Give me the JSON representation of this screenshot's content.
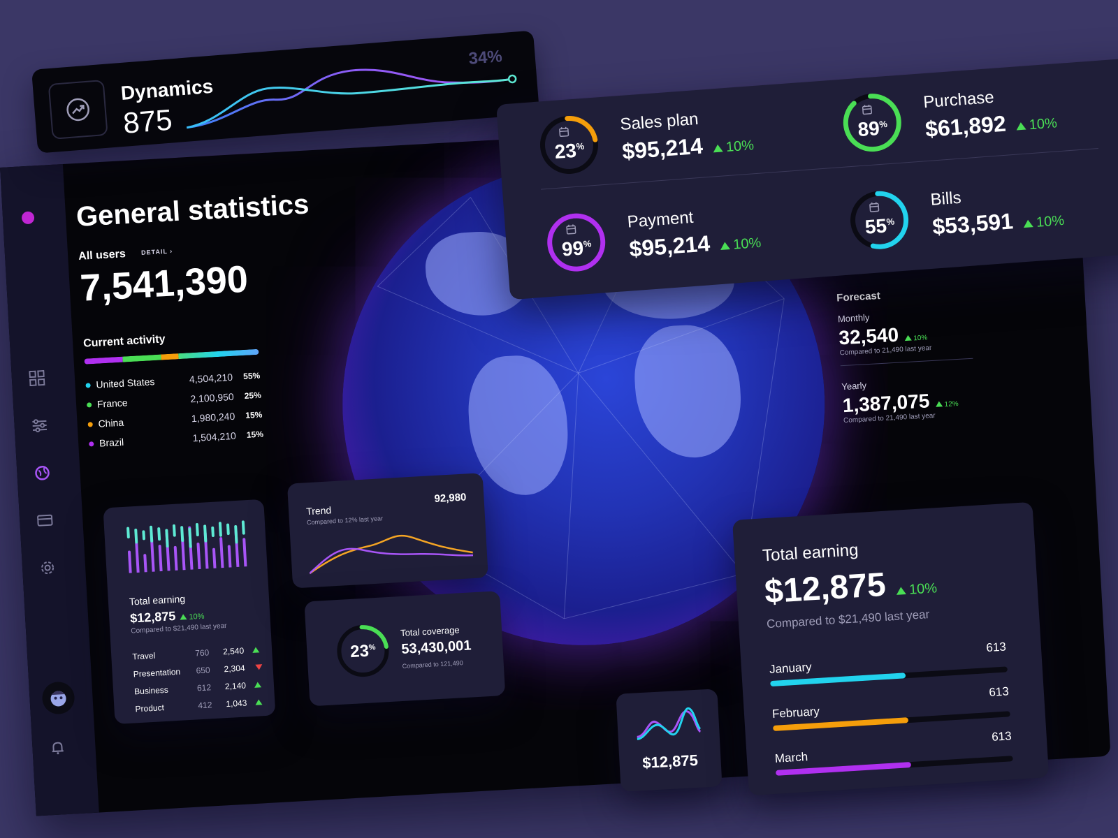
{
  "dynamics": {
    "title": "Dynamics",
    "value": "875",
    "percent": "34%"
  },
  "kpis": [
    {
      "name": "Sales plan",
      "value": "$95,214",
      "change": "10%",
      "percent": "23",
      "pct_sign": "%",
      "color": "#f59e0b",
      "level": 0.23
    },
    {
      "name": "Purchase",
      "value": "$61,892",
      "change": "10%",
      "percent": "89",
      "pct_sign": "%",
      "color": "#4ade55",
      "level": 0.89
    },
    {
      "name": "Payment",
      "value": "$95,214",
      "change": "10%",
      "percent": "99",
      "pct_sign": "%",
      "color": "#b030f0",
      "level": 0.99
    },
    {
      "name": "Bills",
      "value": "$53,591",
      "change": "10%",
      "percent": "55",
      "pct_sign": "%",
      "color": "#22d3ee",
      "level": 0.55
    }
  ],
  "general": {
    "title": "General statistics",
    "all_users_label": "All users",
    "detail_label": "DETAIL",
    "all_users_value": "7,541,390",
    "activity_title": "Current activity",
    "countries": [
      {
        "name": "United States",
        "value": "4,504,210",
        "percent": "55%",
        "color": "#22d3ee"
      },
      {
        "name": "France",
        "value": "2,100,950",
        "percent": "25%",
        "color": "#4ade55"
      },
      {
        "name": "China",
        "value": "1,980,240",
        "percent": "15%",
        "color": "#f59e0b"
      },
      {
        "name": "Brazil",
        "value": "1,504,210",
        "percent": "15%",
        "color": "#b030f0"
      }
    ]
  },
  "forecast": {
    "title": "Forecast",
    "monthly_label": "Monthly",
    "monthly_value": "32,540",
    "monthly_change": "10%",
    "monthly_compare": "Compared to 21,490 last year",
    "yearly_label": "Yearly",
    "yearly_value": "1,387,075",
    "yearly_change": "12%",
    "yearly_compare": "Compared to 21,490 last year"
  },
  "small_earning": {
    "title": "Total earning",
    "value": "$12,875",
    "change": "10%",
    "compare": "Compared to $21,490 last year",
    "rows": [
      {
        "name": "Travel",
        "a": "760",
        "b": "2,540",
        "dir": "up"
      },
      {
        "name": "Presentation",
        "a": "650",
        "b": "2,304",
        "dir": "down"
      },
      {
        "name": "Business",
        "a": "612",
        "b": "2,140",
        "dir": "up"
      },
      {
        "name": "Product",
        "a": "412",
        "b": "1,043",
        "dir": "up"
      }
    ]
  },
  "trend": {
    "title": "Trend",
    "value": "92,980",
    "compare": "Compared to 12% last year"
  },
  "coverage": {
    "percent": "23",
    "pct_sign": "%",
    "title": "Total coverage",
    "value": "53,430,001",
    "compare": "Compared to 121,490",
    "level": 0.23
  },
  "mini_card": {
    "value": "$12,875"
  },
  "big_earning": {
    "title": "Total earning",
    "value": "$12,875",
    "change": "10%",
    "compare": "Compared to $21,490 last year",
    "months": [
      {
        "name": "January",
        "value": "613",
        "color": "#22d3ee",
        "level": 0.57
      },
      {
        "name": "February",
        "value": "613",
        "color": "#f59e0b",
        "level": 0.57
      },
      {
        "name": "March",
        "value": "613",
        "color": "#b030f0",
        "level": 0.57
      }
    ]
  }
}
